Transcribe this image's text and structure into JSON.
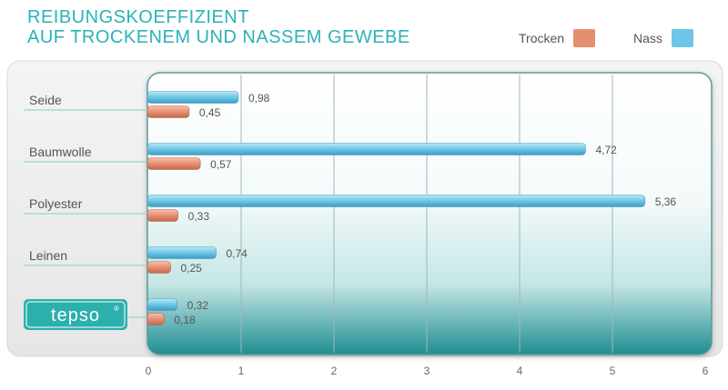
{
  "title": {
    "line1": "REIBUNGSKOEFFIZIENT",
    "line2": "AUF TROCKENEM UND NASSEM GEWEBE"
  },
  "legend": {
    "position": "top-right",
    "items": [
      {
        "label": "Trocken",
        "color": "#e58f72"
      },
      {
        "label": "Nass",
        "color": "#6dc6e6"
      }
    ]
  },
  "brand_logo_text": "tepso®",
  "chart_data": {
    "type": "bar",
    "orientation": "horizontal",
    "title": "REIBUNGSKOEFFIZIENT AUF TROCKENEM UND NASSEM GEWEBE",
    "categories": [
      "Seide",
      "Baumwolle",
      "Polyester",
      "Leinen",
      "tepso"
    ],
    "series": [
      {
        "name": "Nass",
        "color": "#6dc6e6",
        "values": [
          0.98,
          4.72,
          5.36,
          0.74,
          0.32
        ],
        "labels": [
          "0,98",
          "4,72",
          "5,36",
          "0,74",
          "0,32"
        ]
      },
      {
        "name": "Trocken",
        "color": "#e58f72",
        "values": [
          0.45,
          0.57,
          0.33,
          0.25,
          0.18
        ],
        "labels": [
          "0,45",
          "0,57",
          "0,33",
          "0,25",
          "0,18"
        ]
      }
    ],
    "xlim": [
      0,
      6
    ],
    "ticks": [
      0,
      1,
      2,
      3,
      4,
      5,
      6
    ],
    "tick_labels": [
      "0",
      "1",
      "2",
      "3",
      "4",
      "5",
      "6"
    ],
    "grid": true,
    "legend_position": "top-right"
  }
}
